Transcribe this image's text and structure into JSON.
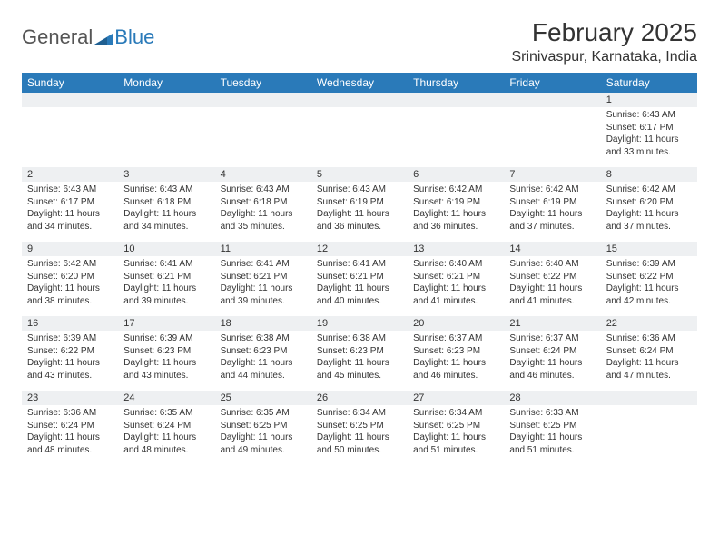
{
  "logo": {
    "text1": "General",
    "text2": "Blue"
  },
  "header": {
    "month": "February 2025",
    "location": "Srinivaspur, Karnataka, India"
  },
  "colors": {
    "brand": "#2a7ab9",
    "header_bg": "#2a7ab9",
    "daynum_bg": "#eef0f2",
    "text": "#333333"
  },
  "day_labels": [
    "Sunday",
    "Monday",
    "Tuesday",
    "Wednesday",
    "Thursday",
    "Friday",
    "Saturday"
  ],
  "weeks": [
    {
      "nums": [
        "",
        "",
        "",
        "",
        "",
        "",
        "1"
      ],
      "cells": [
        "",
        "",
        "",
        "",
        "",
        "",
        "Sunrise: 6:43 AM\nSunset: 6:17 PM\nDaylight: 11 hours and 33 minutes."
      ]
    },
    {
      "nums": [
        "2",
        "3",
        "4",
        "5",
        "6",
        "7",
        "8"
      ],
      "cells": [
        "Sunrise: 6:43 AM\nSunset: 6:17 PM\nDaylight: 11 hours and 34 minutes.",
        "Sunrise: 6:43 AM\nSunset: 6:18 PM\nDaylight: 11 hours and 34 minutes.",
        "Sunrise: 6:43 AM\nSunset: 6:18 PM\nDaylight: 11 hours and 35 minutes.",
        "Sunrise: 6:43 AM\nSunset: 6:19 PM\nDaylight: 11 hours and 36 minutes.",
        "Sunrise: 6:42 AM\nSunset: 6:19 PM\nDaylight: 11 hours and 36 minutes.",
        "Sunrise: 6:42 AM\nSunset: 6:19 PM\nDaylight: 11 hours and 37 minutes.",
        "Sunrise: 6:42 AM\nSunset: 6:20 PM\nDaylight: 11 hours and 37 minutes."
      ]
    },
    {
      "nums": [
        "9",
        "10",
        "11",
        "12",
        "13",
        "14",
        "15"
      ],
      "cells": [
        "Sunrise: 6:42 AM\nSunset: 6:20 PM\nDaylight: 11 hours and 38 minutes.",
        "Sunrise: 6:41 AM\nSunset: 6:21 PM\nDaylight: 11 hours and 39 minutes.",
        "Sunrise: 6:41 AM\nSunset: 6:21 PM\nDaylight: 11 hours and 39 minutes.",
        "Sunrise: 6:41 AM\nSunset: 6:21 PM\nDaylight: 11 hours and 40 minutes.",
        "Sunrise: 6:40 AM\nSunset: 6:21 PM\nDaylight: 11 hours and 41 minutes.",
        "Sunrise: 6:40 AM\nSunset: 6:22 PM\nDaylight: 11 hours and 41 minutes.",
        "Sunrise: 6:39 AM\nSunset: 6:22 PM\nDaylight: 11 hours and 42 minutes."
      ]
    },
    {
      "nums": [
        "16",
        "17",
        "18",
        "19",
        "20",
        "21",
        "22"
      ],
      "cells": [
        "Sunrise: 6:39 AM\nSunset: 6:22 PM\nDaylight: 11 hours and 43 minutes.",
        "Sunrise: 6:39 AM\nSunset: 6:23 PM\nDaylight: 11 hours and 43 minutes.",
        "Sunrise: 6:38 AM\nSunset: 6:23 PM\nDaylight: 11 hours and 44 minutes.",
        "Sunrise: 6:38 AM\nSunset: 6:23 PM\nDaylight: 11 hours and 45 minutes.",
        "Sunrise: 6:37 AM\nSunset: 6:23 PM\nDaylight: 11 hours and 46 minutes.",
        "Sunrise: 6:37 AM\nSunset: 6:24 PM\nDaylight: 11 hours and 46 minutes.",
        "Sunrise: 6:36 AM\nSunset: 6:24 PM\nDaylight: 11 hours and 47 minutes."
      ]
    },
    {
      "nums": [
        "23",
        "24",
        "25",
        "26",
        "27",
        "28",
        ""
      ],
      "cells": [
        "Sunrise: 6:36 AM\nSunset: 6:24 PM\nDaylight: 11 hours and 48 minutes.",
        "Sunrise: 6:35 AM\nSunset: 6:24 PM\nDaylight: 11 hours and 48 minutes.",
        "Sunrise: 6:35 AM\nSunset: 6:25 PM\nDaylight: 11 hours and 49 minutes.",
        "Sunrise: 6:34 AM\nSunset: 6:25 PM\nDaylight: 11 hours and 50 minutes.",
        "Sunrise: 6:34 AM\nSunset: 6:25 PM\nDaylight: 11 hours and 51 minutes.",
        "Sunrise: 6:33 AM\nSunset: 6:25 PM\nDaylight: 11 hours and 51 minutes.",
        ""
      ]
    }
  ]
}
